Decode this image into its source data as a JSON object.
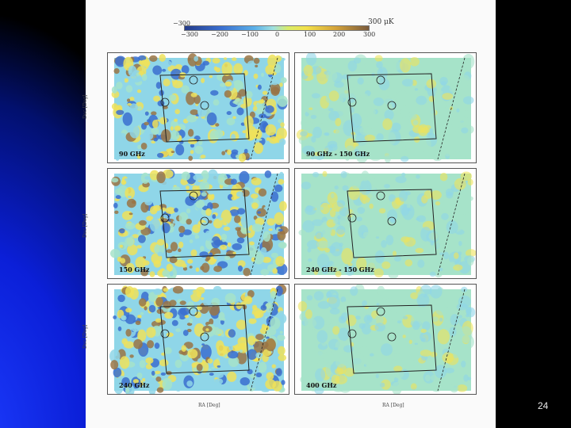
{
  "colorbar": {
    "top_labels": [
      "−300",
      "300 μK"
    ],
    "bottom_labels": [
      "−300",
      "−200",
      "−100",
      "0",
      "100",
      "200",
      "300"
    ]
  },
  "panels": [
    {
      "label": "90 GHz",
      "style": "rich"
    },
    {
      "label": "90 GHz - 150 GHz",
      "style": "diff"
    },
    {
      "label": "150 GHz",
      "style": "rich"
    },
    {
      "label": "240 GHz - 150 GHz",
      "style": "diff"
    },
    {
      "label": "240 GHz",
      "style": "rich"
    },
    {
      "label": "400 GHz",
      "style": "diff"
    }
  ],
  "axes": {
    "y_label": "Dec [Deg]",
    "x_label_left": "RA [Deg]",
    "x_label_right": "RA [Deg]"
  },
  "slide_number": "24",
  "colors": {
    "deep_blue": "#3b6fcf",
    "light_blue": "#8fd6e8",
    "cyan_green": "#a6e3c9",
    "yellow": "#efe25a",
    "brown": "#9a7444"
  }
}
